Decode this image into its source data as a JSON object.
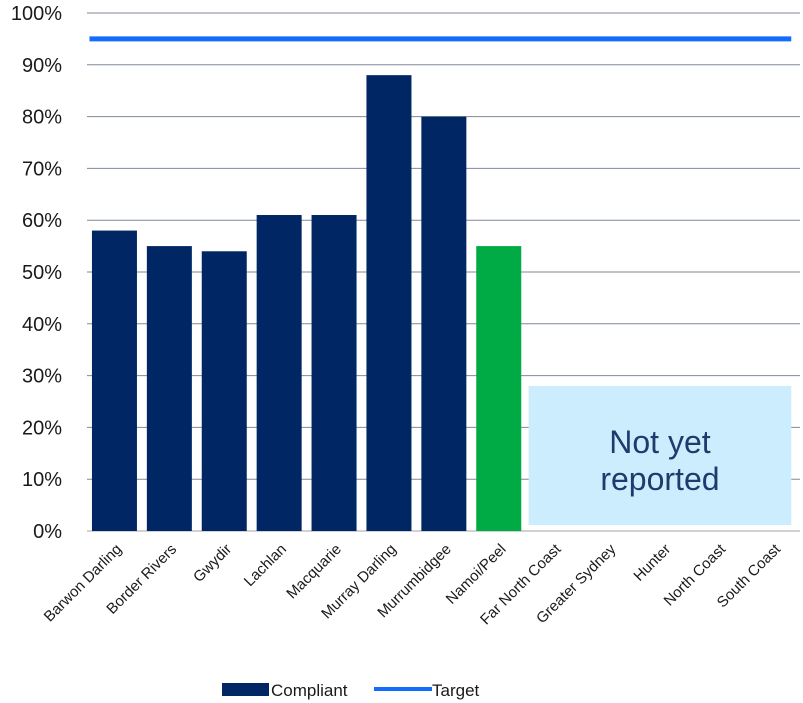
{
  "chart_data": {
    "type": "bar",
    "categories": [
      "Barwon Darling",
      "Border Rivers",
      "Gwydir",
      "Lachlan",
      "Macquarie",
      "Murray Darling",
      "Murrumbidgee",
      "Namoi/Peel",
      "Far North Coast",
      "Greater Sydney",
      "Hunter",
      "North Coast",
      "South Coast"
    ],
    "series": [
      {
        "name": "Compliant",
        "values": [
          58,
          55,
          54,
          61,
          61,
          88,
          80,
          55,
          null,
          null,
          null,
          null,
          null
        ],
        "color": "#002664",
        "highlight": {
          "category": "Namoi/Peel",
          "color": "#00aa45"
        }
      },
      {
        "name": "Target",
        "type": "line",
        "value": 95,
        "color": "#146cfd"
      }
    ],
    "y_ticks": [
      "0%",
      "10%",
      "20%",
      "30%",
      "40%",
      "50%",
      "60%",
      "70%",
      "80%",
      "90%",
      "100%"
    ],
    "ylim": [
      0,
      100
    ],
    "y_unit": "%",
    "grid": true,
    "legend": {
      "position": "bottom-center",
      "entries": [
        "Compliant",
        "Target"
      ]
    },
    "annotation": {
      "text_lines": [
        "Not yet",
        "reported"
      ],
      "value": 28,
      "spans_categories": [
        "Far North Coast",
        "South Coast"
      ],
      "fill": "#cbedfd"
    },
    "title": "",
    "xlabel": "",
    "ylabel": ""
  }
}
